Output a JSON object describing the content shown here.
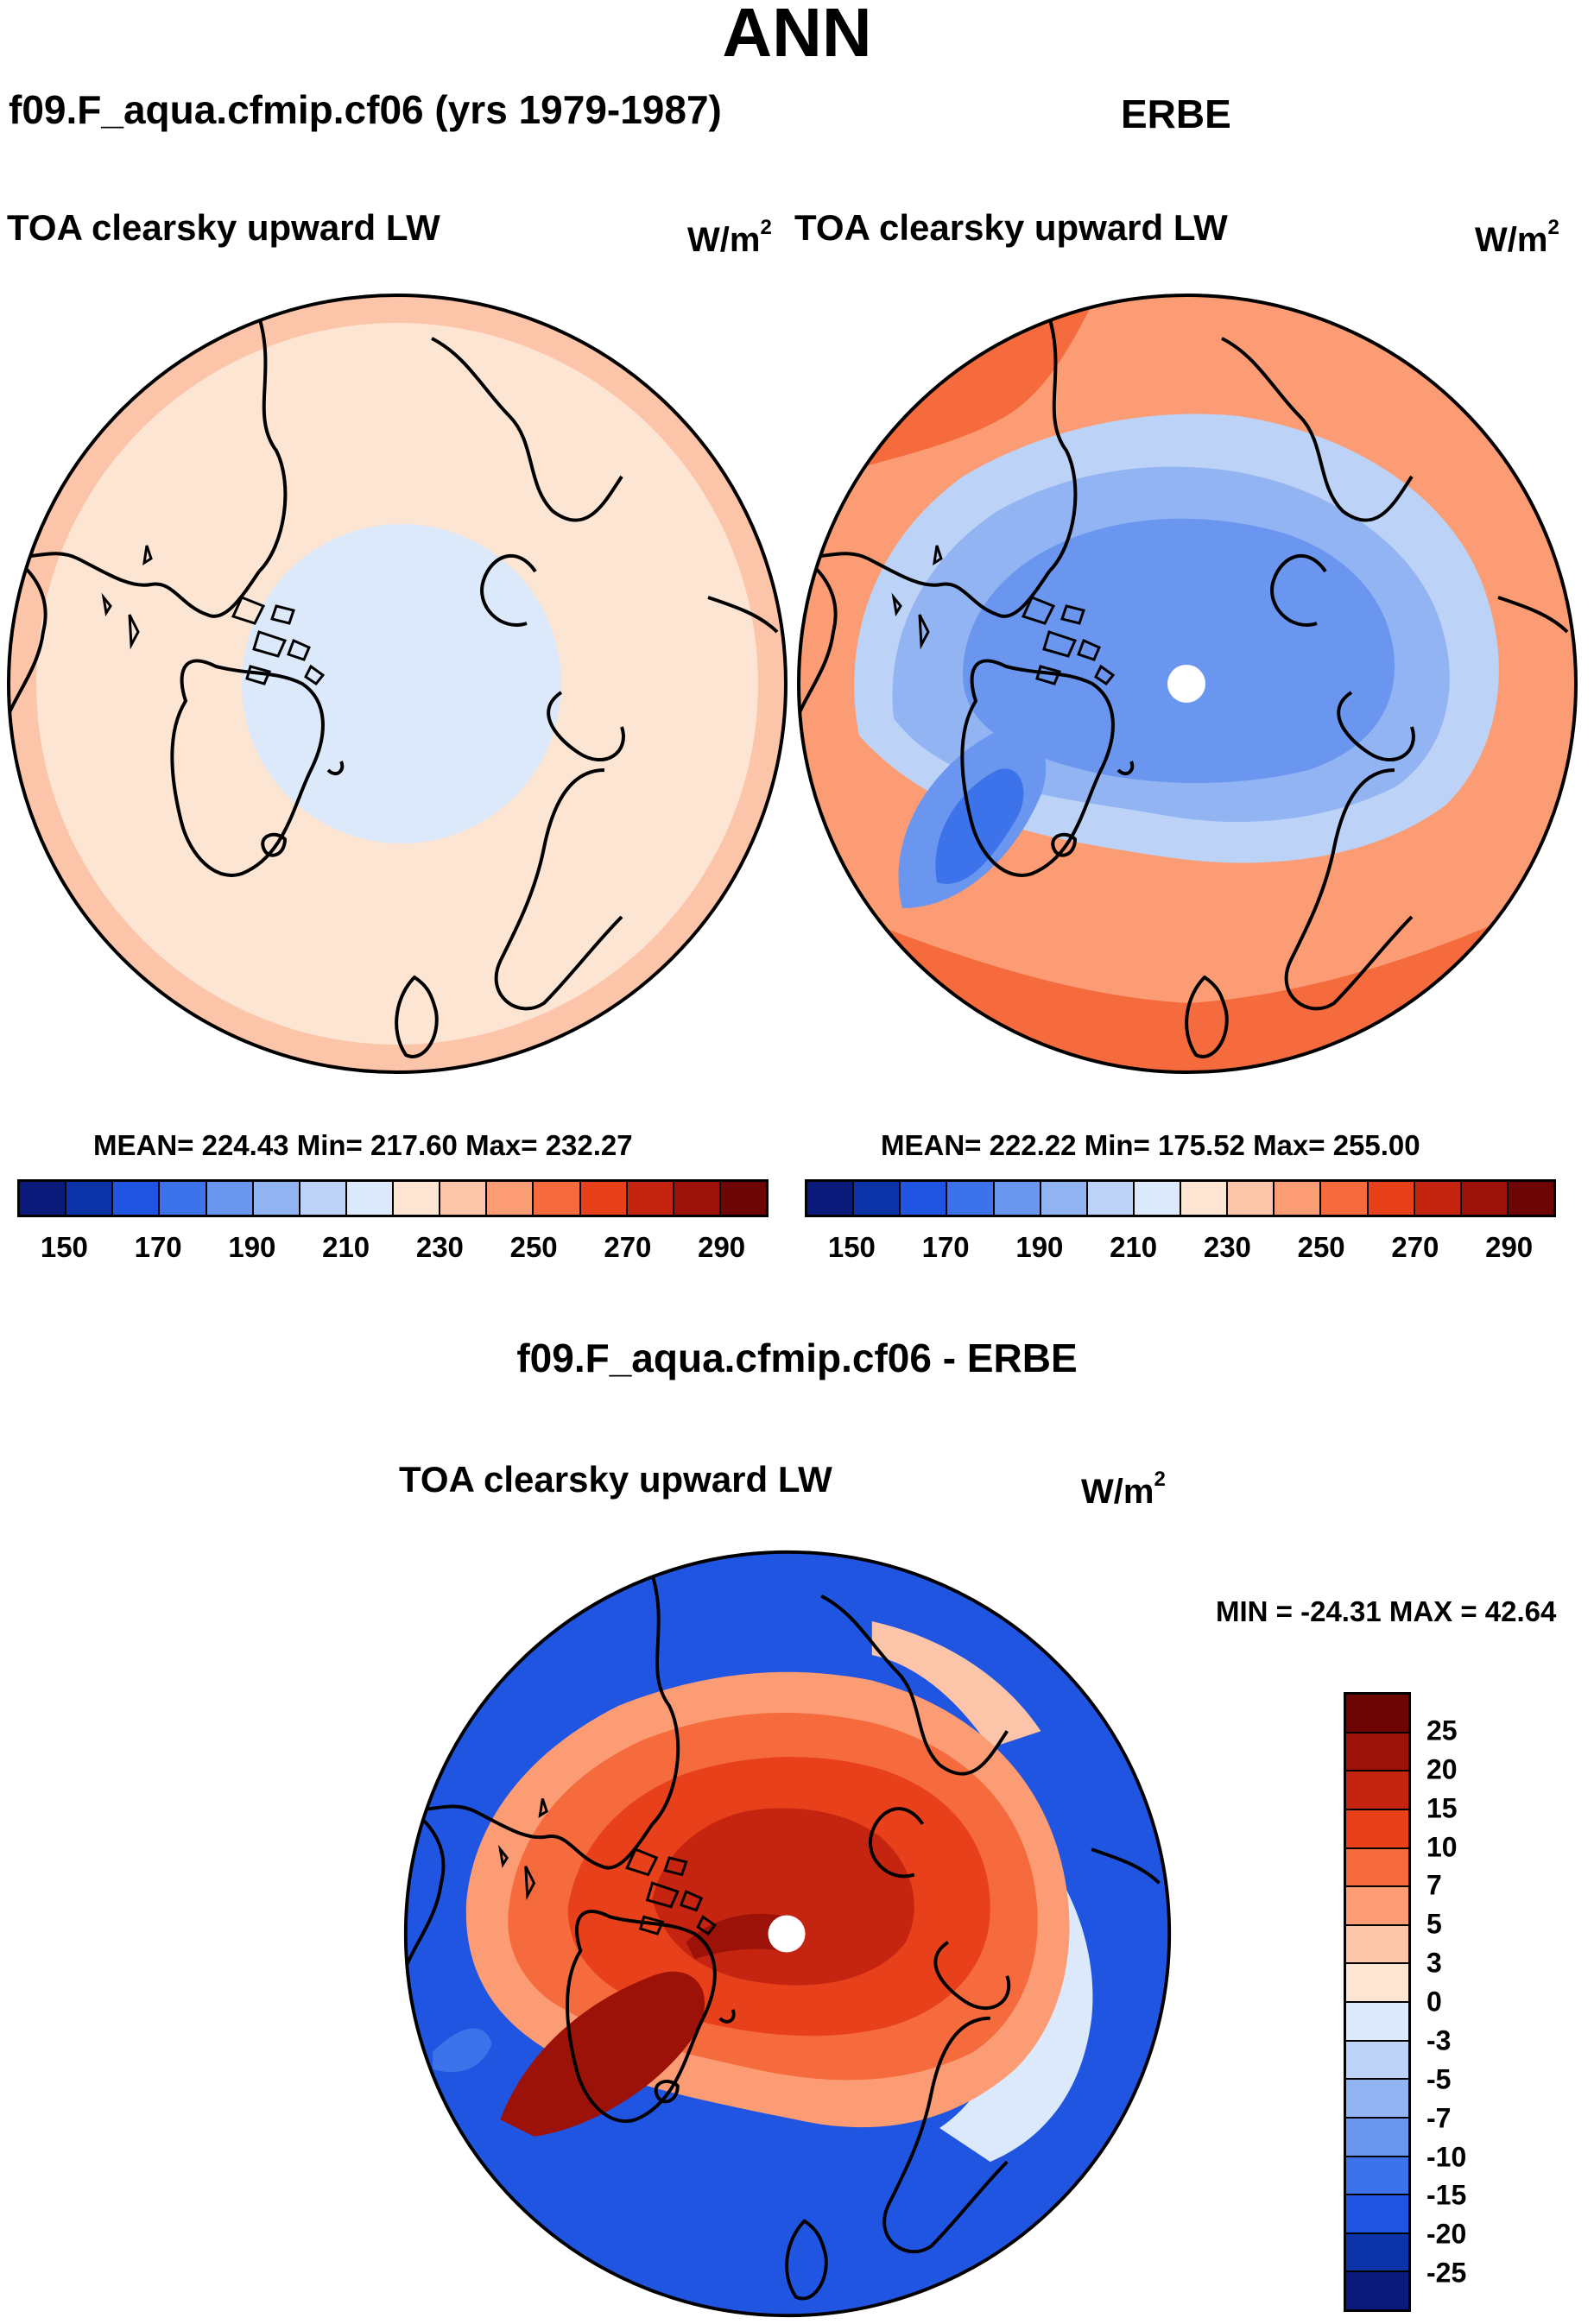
{
  "figure": {
    "main_title": "ANN",
    "left_panel": {
      "title": "f09.F_aqua.cfmip.cf06 (yrs 1979-1987)",
      "variable": "TOA clearsky upward LW",
      "units": "W/m",
      "units_exp": "2",
      "stats": "MEAN= 224.43  Min= 217.60  Max= 232.27"
    },
    "right_panel": {
      "title": "ERBE",
      "variable": "TOA clearsky upward LW",
      "units": "W/m",
      "units_exp": "2",
      "stats": "MEAN= 222.22  Min= 175.52  Max= 255.00"
    },
    "diff_panel": {
      "title": "f09.F_aqua.cfmip.cf06 - ERBE",
      "variable": "TOA clearsky upward LW",
      "units": "W/m",
      "units_exp": "2",
      "stats": "MIN = -24.31 MAX =  42.64"
    }
  },
  "abs_colorbar": {
    "colors": [
      "#0a1a7a",
      "#0d33a8",
      "#1f55e0",
      "#3c73ea",
      "#6a96ef",
      "#93b4f2",
      "#bcd2f6",
      "#dbe9fb",
      "#fde5d4",
      "#fcc4a8",
      "#fb9c74",
      "#f56b3e",
      "#e8401a",
      "#c42410",
      "#9c1208",
      "#6e0505"
    ],
    "ticks": [
      "150",
      "170",
      "190",
      "210",
      "230",
      "250",
      "270",
      "290"
    ]
  },
  "diff_colorbar": {
    "colors": [
      "#6e0505",
      "#9c1208",
      "#c42410",
      "#e8401a",
      "#f56b3e",
      "#fb9c74",
      "#fcc4a8",
      "#fde5d4",
      "#dbe9fb",
      "#bcd2f6",
      "#93b4f2",
      "#6a96ef",
      "#3c73ea",
      "#1f55e0",
      "#0d33a8",
      "#0a1a7a"
    ],
    "ticks": [
      "25",
      "20",
      "15",
      "10",
      "7",
      "5",
      "3",
      "0",
      "-3",
      "-5",
      "-7",
      "-10",
      "-15",
      "-20",
      "-25"
    ]
  }
}
